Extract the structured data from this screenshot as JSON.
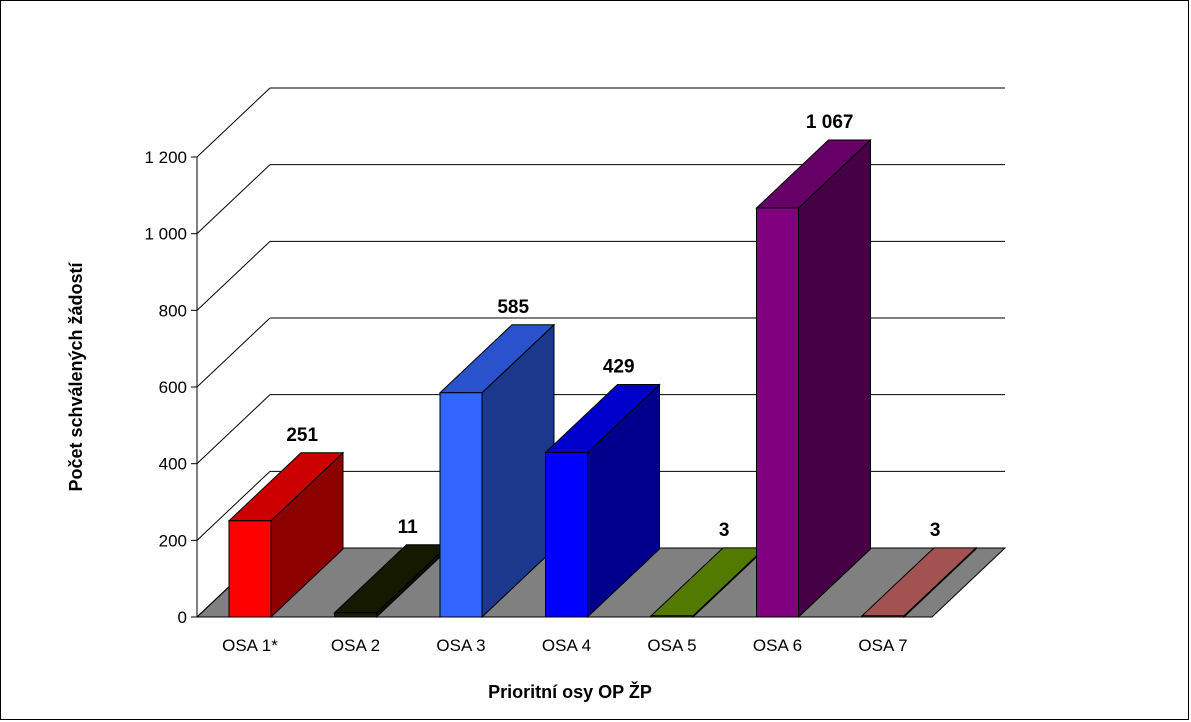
{
  "chart_data": {
    "type": "bar",
    "title": "",
    "xlabel": "Prioritní osy OP ŽP",
    "ylabel": "Počet schválených žádostí",
    "categories": [
      "OSA 1*",
      "OSA 2",
      "OSA 3",
      "OSA 4",
      "OSA 5",
      "OSA 6",
      "OSA 7"
    ],
    "values": [
      251,
      11,
      585,
      429,
      3,
      1067,
      3
    ],
    "value_labels": [
      "251",
      "11",
      "585",
      "429",
      "3",
      "1 067",
      "3"
    ],
    "y_ticks": [
      0,
      200,
      400,
      600,
      800,
      1000,
      1200
    ],
    "y_tick_labels": [
      "0",
      "200",
      "400",
      "600",
      "800",
      "1 000",
      "1 200"
    ],
    "ylim": [
      0,
      1200
    ],
    "grid": true,
    "style": "3d",
    "colors": [
      "#ff0000",
      "#1a1f00",
      "#3366ff",
      "#0000ff",
      "#669900",
      "#800080",
      "#cc6666"
    ],
    "floor_color": "#808080"
  }
}
